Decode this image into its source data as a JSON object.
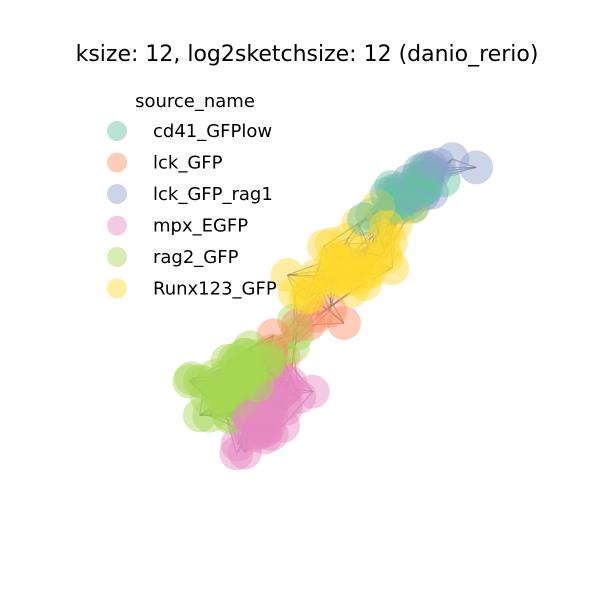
{
  "chart_data": {
    "type": "scatter",
    "title": "ksize: 12, log2sketchsize: 12 (danio_rerio)",
    "legend": {
      "title": "source_name",
      "placement": "upper-left",
      "entries": [
        {
          "name": "cd41_GFPlow",
          "color": "#66c2a5"
        },
        {
          "name": "lck_GFP",
          "color": "#fc8d62"
        },
        {
          "name": "lck_GFP_rag1",
          "color": "#8da0cb"
        },
        {
          "name": "mpx_EGFP",
          "color": "#e78ac3"
        },
        {
          "name": "rag2_GFP",
          "color": "#a6d854"
        },
        {
          "name": "Runx123_GFP",
          "color": "#ffd92f"
        }
      ]
    },
    "axes_visible": false,
    "node_alpha": 0.45,
    "edge_color": "#555555"
  }
}
